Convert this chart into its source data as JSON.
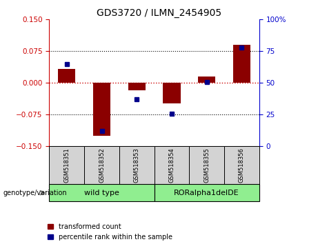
{
  "title": "GDS3720 / ILMN_2454905",
  "samples": [
    "GSM518351",
    "GSM518352",
    "GSM518353",
    "GSM518354",
    "GSM518355",
    "GSM518356"
  ],
  "red_bars": [
    0.033,
    -0.125,
    -0.018,
    -0.048,
    0.015,
    0.09
  ],
  "blue_dots_pct": [
    0.65,
    0.12,
    0.37,
    0.26,
    0.51,
    0.78
  ],
  "ylim_left": [
    -0.15,
    0.15
  ],
  "ylim_right": [
    0,
    100
  ],
  "yticks_left": [
    -0.15,
    -0.075,
    0,
    0.075,
    0.15
  ],
  "yticks_right": [
    0,
    25,
    50,
    75,
    100
  ],
  "bar_color": "#8B0000",
  "dot_color": "#00008B",
  "left_axis_color": "#CC0000",
  "right_axis_color": "#0000CC",
  "legend_red_label": "transformed count",
  "legend_blue_label": "percentile rank within the sample",
  "genotype_label": "genotype/variation",
  "group1_label": "wild type",
  "group2_label": "RORalpha1delDE",
  "group_color": "#90EE90",
  "sample_box_color": "#d3d3d3"
}
